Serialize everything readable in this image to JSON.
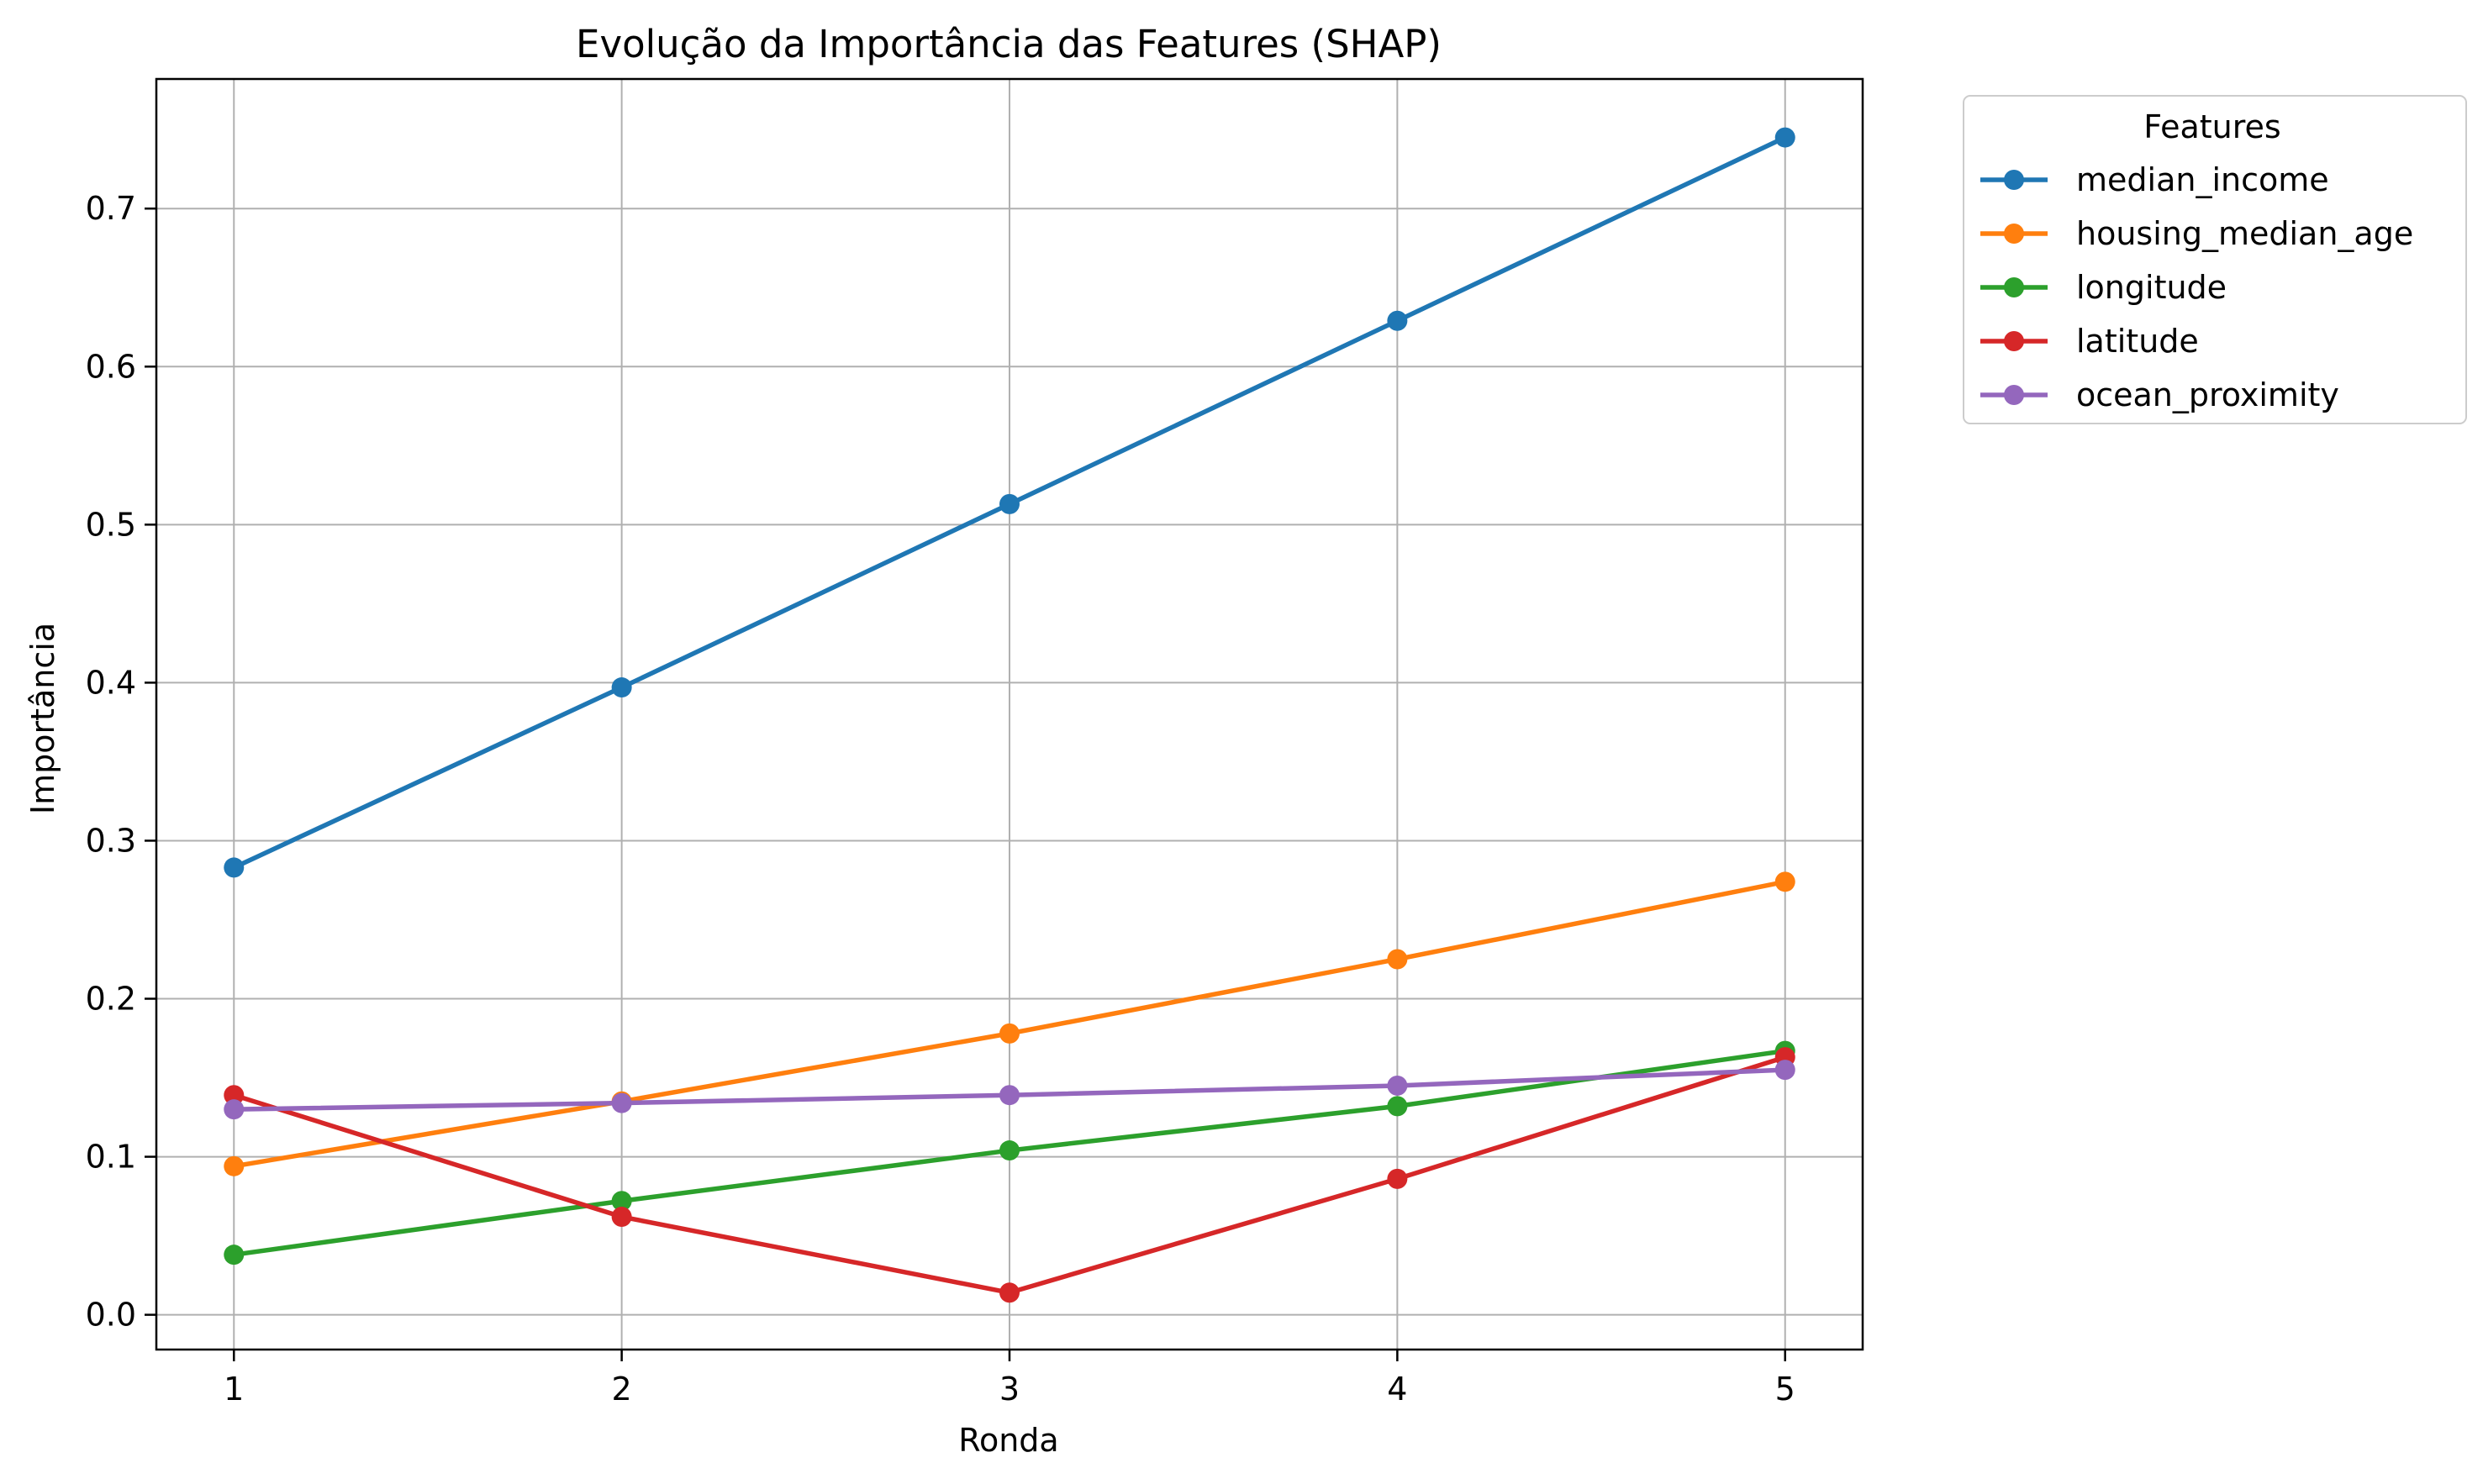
{
  "chart_data": {
    "type": "line",
    "title": "Evolução da Importância das Features (SHAP)",
    "xlabel": "Ronda",
    "ylabel": "Importância",
    "x": [
      1,
      2,
      3,
      4,
      5
    ],
    "x_ticks": [
      "1",
      "2",
      "3",
      "4",
      "5"
    ],
    "xlim": [
      0.8,
      5.2
    ],
    "ylim": [
      -0.022,
      0.782
    ],
    "y_ticks": [
      "0.0",
      "0.1",
      "0.2",
      "0.3",
      "0.4",
      "0.5",
      "0.6",
      "0.7"
    ],
    "grid": true,
    "legend": {
      "title": "Features",
      "placement": "outside-top-right"
    },
    "series": [
      {
        "name": "median_income",
        "color": "#1f77b4",
        "values": [
          0.283,
          0.397,
          0.513,
          0.629,
          0.745
        ]
      },
      {
        "name": "housing_median_age",
        "color": "#ff7f0e",
        "values": [
          0.094,
          0.135,
          0.178,
          0.225,
          0.274
        ]
      },
      {
        "name": "longitude",
        "color": "#2ca02c",
        "values": [
          0.038,
          0.072,
          0.104,
          0.132,
          0.167
        ]
      },
      {
        "name": "latitude",
        "color": "#d62728",
        "values": [
          0.139,
          0.062,
          0.014,
          0.086,
          0.163
        ]
      },
      {
        "name": "ocean_proximity",
        "color": "#9467bd",
        "values": [
          0.13,
          0.134,
          0.139,
          0.145,
          0.155
        ]
      }
    ]
  }
}
